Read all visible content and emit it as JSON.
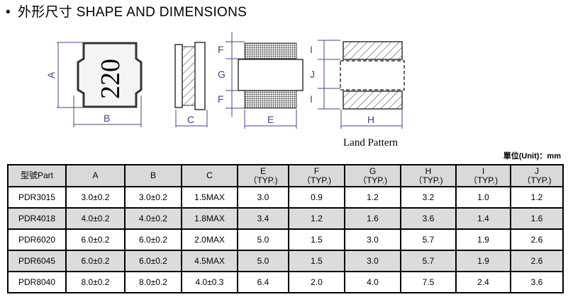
{
  "title": {
    "bullet": "•",
    "text": "外形尺寸 SHAPE AND DIMENSIONS"
  },
  "drawing": {
    "marking": "220",
    "labels": {
      "A": "A",
      "B": "B",
      "C": "C",
      "E": "E",
      "F": "F",
      "G": "G",
      "H": "H",
      "I": "I",
      "J": "J"
    },
    "land_pattern": "Land Pattern",
    "line_color": "#4b3f8f"
  },
  "unit": "單位(Unit)：mm",
  "table": {
    "headers": [
      {
        "l1": "型號Part",
        "l2": ""
      },
      {
        "l1": "A",
        "l2": ""
      },
      {
        "l1": "B",
        "l2": ""
      },
      {
        "l1": "C",
        "l2": ""
      },
      {
        "l1": "E",
        "l2": "（TYP.)"
      },
      {
        "l1": "F",
        "l2": "（TYP.)"
      },
      {
        "l1": "G",
        "l2": "（TYP.)"
      },
      {
        "l1": "H",
        "l2": "（TYP.)"
      },
      {
        "l1": "I",
        "l2": "（TYP.)"
      },
      {
        "l1": "J",
        "l2": "（TYP.)"
      }
    ],
    "rows": [
      [
        "PDR3015",
        "3.0±0.2",
        "3.0±0.2",
        "1.5MAX",
        "3.0",
        "0.9",
        "1.2",
        "3.2",
        "1.0",
        "1.2"
      ],
      [
        "PDR4018",
        "4.0±0.2",
        "4.0±0.2",
        "1.8MAX",
        "3.4",
        "1.2",
        "1.6",
        "3.6",
        "1.4",
        "1.6"
      ],
      [
        "PDR6020",
        "6.0±0.2",
        "6.0±0.2",
        "2.0MAX",
        "5.0",
        "1.5",
        "3.0",
        "5.7",
        "1.9",
        "2.6"
      ],
      [
        "PDR6045",
        "6.0±0.2",
        "6.0±0.2",
        "4.5MAX",
        "5.0",
        "1.5",
        "3.0",
        "5.7",
        "1.9",
        "2.6"
      ],
      [
        "PDR8040",
        "8.0±0.2",
        "8.0±0.2",
        "4.0±0.3",
        "6.4",
        "2.0",
        "4.0",
        "7.5",
        "2.4",
        "3.6"
      ]
    ]
  }
}
